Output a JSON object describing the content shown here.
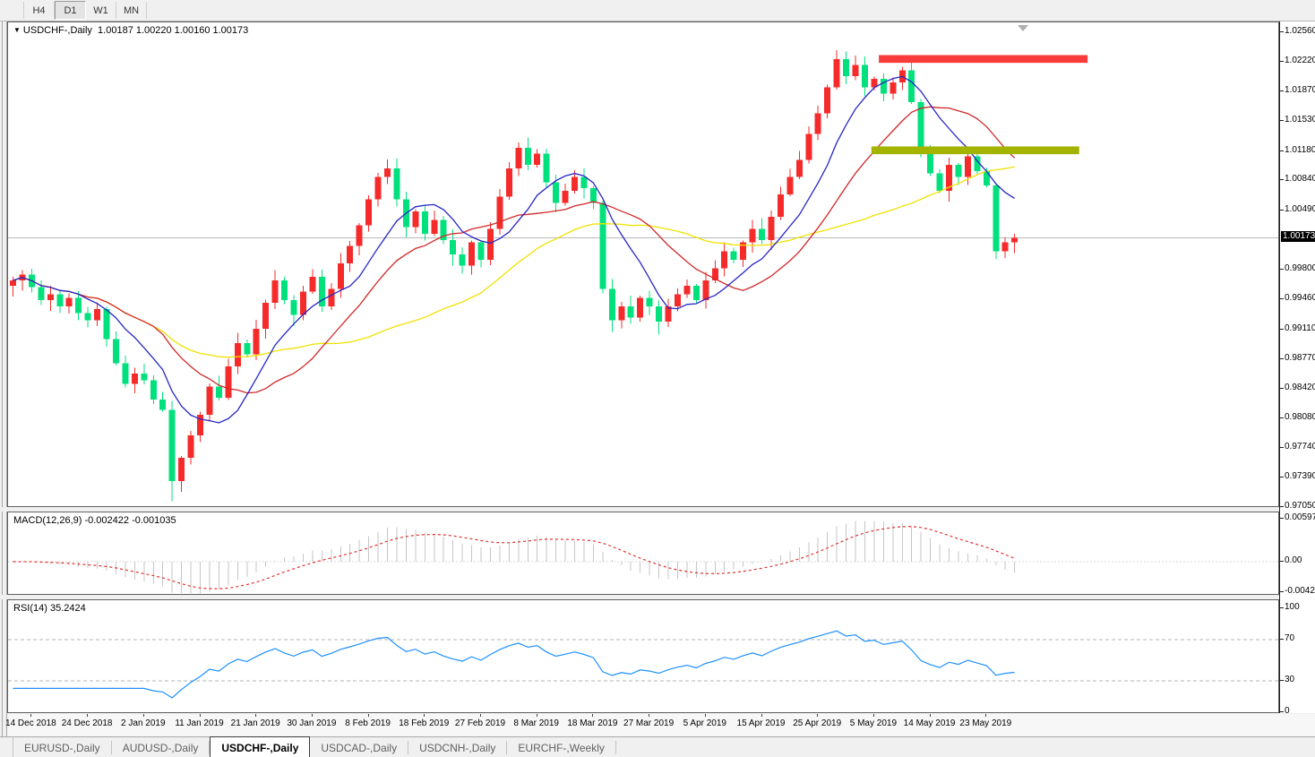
{
  "toolbar": {
    "buttons": [
      {
        "label": "H4",
        "active": false
      },
      {
        "label": "D1",
        "active": true
      },
      {
        "label": "W1",
        "active": false
      },
      {
        "label": "MN",
        "active": false
      }
    ]
  },
  "chart_header": {
    "symbol": "USDCHF-,Daily",
    "ohlc": "1.00187 1.00220 1.00160 1.00173"
  },
  "macd_panel": {
    "label": "MACD(12,26,9) -0.002422 -0.001035",
    "axis_ticks": [
      "0.00597",
      "0.00",
      "-0.004243"
    ]
  },
  "rsi_panel": {
    "label": "RSI(14) 35.2424",
    "axis_ticks": [
      "100",
      "70",
      "30",
      "0"
    ]
  },
  "price_axis": {
    "ticks": [
      "1.02560",
      "1.02220",
      "1.01870",
      "1.01530",
      "1.01180",
      "1.00840",
      "1.00490",
      "0.99800",
      "0.99460",
      "0.99110",
      "0.98770",
      "0.98420",
      "0.98080",
      "0.97740",
      "0.97390",
      "0.97050"
    ],
    "current_price": "1.00173"
  },
  "tabbar": {
    "tabs": [
      {
        "label": "EURUSD-,Daily",
        "active": false
      },
      {
        "label": "AUDUSD-,Daily",
        "active": false
      },
      {
        "label": "USDCHF-,Daily",
        "active": true
      },
      {
        "label": "USDCAD-,Daily",
        "active": false
      },
      {
        "label": "USDCNH-,Daily",
        "active": false
      },
      {
        "label": "EURCHF-,Weekly",
        "active": false
      }
    ]
  },
  "chart_data": {
    "type": "candlestick",
    "title": "USDCHF-,Daily",
    "current_ohlc": {
      "open": 1.00187,
      "high": 1.0022,
      "low": 1.0016,
      "close": 1.00173
    },
    "y_axis": {
      "top_price": 1.0256,
      "bottom_price": 0.9705,
      "tick_step": 0.0034
    },
    "first_open": 0.9962,
    "closes": [
      0.9968,
      0.9975,
      0.996,
      0.9945,
      0.9952,
      0.9938,
      0.9948,
      0.993,
      0.9922,
      0.9935,
      0.99,
      0.9872,
      0.9848,
      0.986,
      0.9852,
      0.983,
      0.9818,
      0.9735,
      0.9762,
      0.9788,
      0.9812,
      0.9845,
      0.9832,
      0.9868,
      0.9895,
      0.9882,
      0.9912,
      0.9942,
      0.9968,
      0.9945,
      0.9928,
      0.9955,
      0.9972,
      0.9938,
      0.9958,
      0.9988,
      1.0008,
      1.0032,
      1.0062,
      1.0088,
      1.0098,
      1.0062,
      1.003,
      1.0048,
      1.0022,
      1.0038,
      1.0015,
      0.9998,
      0.9985,
      1.0012,
      0.9992,
      1.0028,
      1.0065,
      1.0098,
      1.0122,
      1.0102,
      1.0115,
      1.0082,
      1.0058,
      1.0072,
      1.0088,
      1.0075,
      1.0058,
      0.9958,
      0.9922,
      0.9938,
      0.9925,
      0.9948,
      0.9938,
      0.992,
      0.9938,
      0.9952,
      0.9962,
      0.9945,
      0.9968,
      0.9982,
      1.0002,
      0.9992,
      1.0012,
      1.0028,
      1.0015,
      1.0042,
      1.0068,
      1.0088,
      1.0108,
      1.0138,
      1.0162,
      1.0192,
      1.0225,
      1.0205,
      1.0218,
      1.0192,
      1.0202,
      1.0185,
      1.0198,
      1.0212,
      1.0175,
      1.0118,
      1.0092,
      1.0072,
      1.0102,
      1.0088,
      1.0112,
      1.0095,
      1.0078,
      1.0002,
      1.0012,
      1.00173
    ],
    "wick_overrides": {
      "17": {
        "low": 0.9712
      },
      "54": {
        "high": 1.0128
      },
      "64": {
        "low": 0.9908
      },
      "69": {
        "low": 0.9905
      },
      "88": {
        "high": 1.0235
      },
      "105": {
        "low": 0.9993
      }
    },
    "date_ticks": [
      {
        "i": 2,
        "label": "14 Dec 2018"
      },
      {
        "i": 8,
        "label": "24 Dec 2018"
      },
      {
        "i": 14,
        "label": "2 Jan 2019"
      },
      {
        "i": 20,
        "label": "11 Jan 2019"
      },
      {
        "i": 26,
        "label": "21 Jan 2019"
      },
      {
        "i": 32,
        "label": "30 Jan 2019"
      },
      {
        "i": 38,
        "label": "8 Feb 2019"
      },
      {
        "i": 44,
        "label": "18 Feb 2019"
      },
      {
        "i": 50,
        "label": "27 Feb 2019"
      },
      {
        "i": 56,
        "label": "8 Mar 2019"
      },
      {
        "i": 62,
        "label": "18 Mar 2019"
      },
      {
        "i": 68,
        "label": "27 Mar 2019"
      },
      {
        "i": 74,
        "label": "5 Apr 2019"
      },
      {
        "i": 80,
        "label": "15 Apr 2019"
      },
      {
        "i": 86,
        "label": "25 Apr 2019"
      },
      {
        "i": 92,
        "label": "5 May 2019"
      },
      {
        "i": 98,
        "label": "14 May 2019"
      },
      {
        "i": 104,
        "label": "23 May 2019"
      }
    ],
    "moving_averages": [
      {
        "period": 8,
        "color_key": "ma_fast"
      },
      {
        "period": 16,
        "color_key": "ma_mid"
      },
      {
        "period": 34,
        "color_key": "ma_slow"
      }
    ],
    "indicators": {
      "macd": {
        "params": [
          12,
          26,
          9
        ],
        "current_values": [
          -0.002422,
          -0.001035
        ],
        "axis_max": 0.00597,
        "axis_min": -0.004243
      },
      "rsi": {
        "period": 14,
        "current_value": 35.2424,
        "levels": [
          70,
          30
        ],
        "axis_max": 100,
        "axis_min": 0
      }
    },
    "annotations": {
      "resistance_zone": {
        "i1": 92.5,
        "i2": 114.8,
        "p1": 1.02295,
        "p2": 1.02205
      },
      "support_zone": {
        "i1": 91.7,
        "i2": 113.9,
        "p1": 1.01235,
        "p2": 1.01145
      },
      "current_price_line": 1.00173
    },
    "colors": {
      "bull": "#f52b2b",
      "bear": "#00e07c",
      "ma_fast": "#2626c6",
      "ma_mid": "#d02828",
      "ma_slow": "#f0e200",
      "macd_hist": "#c6c6c6",
      "macd_signal": "#e03232",
      "rsi_line": "#1e90ff",
      "resistance": "#fa3b3b",
      "support": "#a3b400",
      "price_line": "#b9b9b9",
      "level_dash": "#b4b4b4"
    }
  }
}
